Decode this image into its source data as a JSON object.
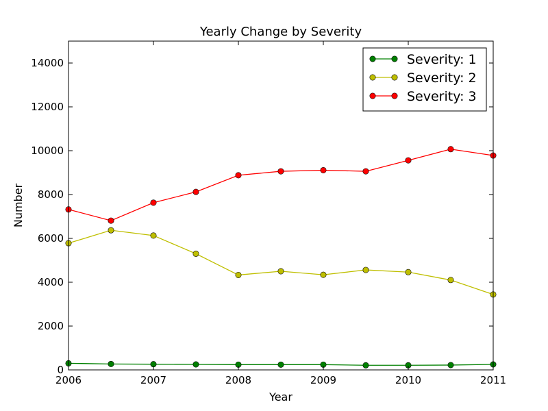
{
  "chart_data": {
    "type": "line",
    "title": "Yearly Change by Severity",
    "xlabel": "Year",
    "ylabel": "Number",
    "xlim": [
      2006,
      2011
    ],
    "ylim": [
      0,
      15000
    ],
    "xticks": [
      2006,
      2007,
      2008,
      2009,
      2010,
      2011
    ],
    "yticks": [
      0,
      2000,
      4000,
      6000,
      8000,
      10000,
      12000,
      14000
    ],
    "grid": false,
    "legend_placement": "top-right",
    "x": [
      2006.0,
      2006.5,
      2007.0,
      2007.5,
      2008.0,
      2008.5,
      2009.0,
      2009.5,
      2010.0,
      2010.5,
      2011.0
    ],
    "series": [
      {
        "name": "Severity: 1",
        "color": "#008000",
        "values": [
          300,
          270,
          260,
          250,
          240,
          240,
          240,
          210,
          210,
          220,
          250
        ]
      },
      {
        "name": "Severity: 2",
        "color": "#bfbf00",
        "values": [
          5780,
          6370,
          6130,
          5300,
          4330,
          4500,
          4340,
          4560,
          4460,
          4100,
          3440
        ]
      },
      {
        "name": "Severity: 3",
        "color": "#ff0000",
        "values": [
          7320,
          6810,
          7630,
          8120,
          8880,
          9060,
          9110,
          9060,
          9560,
          10070,
          9780
        ]
      }
    ]
  }
}
